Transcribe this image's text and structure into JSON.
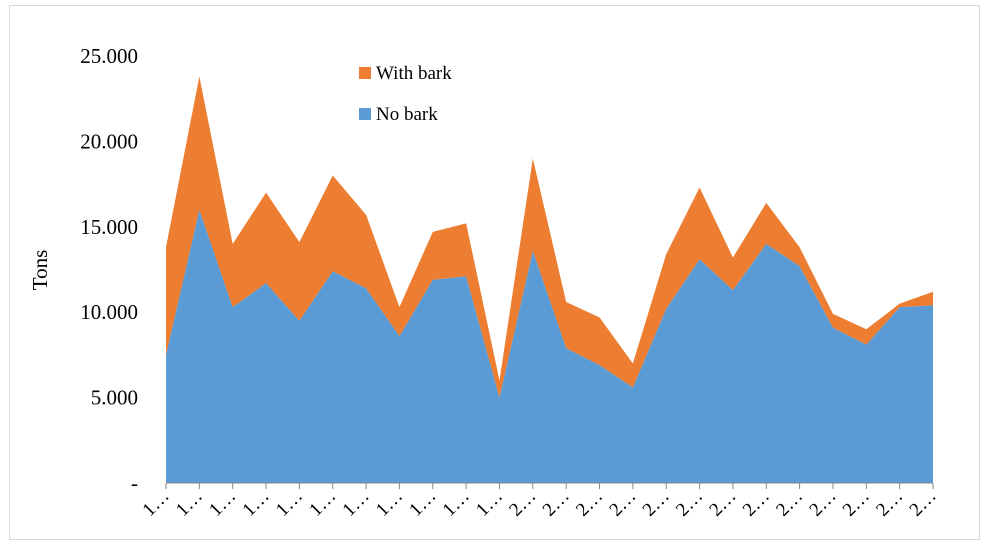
{
  "chart_data": {
    "type": "area",
    "stacked": true,
    "title": "",
    "xlabel": "",
    "ylabel": "Tons",
    "ylim": [
      0,
      25000
    ],
    "yticks": [
      0,
      5000,
      10000,
      15000,
      20000,
      25000
    ],
    "ytick_labels": [
      "-",
      "5.000",
      "10.000",
      "15.000",
      "20.000",
      "25.000"
    ],
    "categories": [
      "1…",
      "1…",
      "1…",
      "1…",
      "1…",
      "1…",
      "1…",
      "1…",
      "1…",
      "1…",
      "1…",
      "2…",
      "2…",
      "2…",
      "2…",
      "2…",
      "2…",
      "2…",
      "2…",
      "2…",
      "2…",
      "2…",
      "2…",
      "2…"
    ],
    "legend_position": "top",
    "series": [
      {
        "name": "No bark",
        "color": "#5b9bd5",
        "values": [
          7500,
          16000,
          10300,
          11700,
          9500,
          12400,
          11400,
          8600,
          11900,
          12100,
          5000,
          13600,
          7900,
          6900,
          5600,
          10200,
          13100,
          11300,
          14000,
          12700,
          9100,
          8100,
          10300,
          10400
        ]
      },
      {
        "name": "With bark",
        "color": "#ed7d31",
        "values": [
          6300,
          7800,
          3700,
          5300,
          4600,
          5600,
          4300,
          1700,
          2800,
          3100,
          1000,
          5400,
          2700,
          2800,
          1400,
          3200,
          4200,
          1900,
          2400,
          1100,
          800,
          900,
          200,
          800
        ]
      }
    ]
  }
}
